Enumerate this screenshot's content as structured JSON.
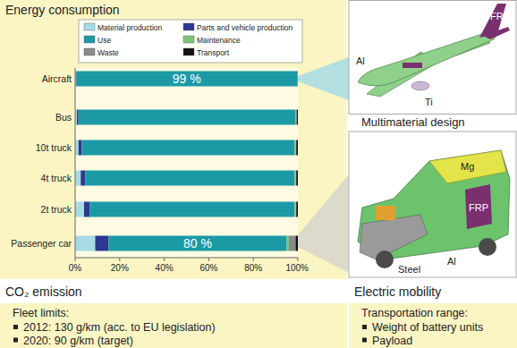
{
  "chart_data": {
    "type": "bar",
    "title": "Energy consumption",
    "orientation": "horizontal",
    "stacked": true,
    "legend": "top",
    "grid": false,
    "categories": [
      "Aircraft",
      "Bus",
      "10t truck",
      "4t truck",
      "2t truck",
      "Passenger car"
    ],
    "series": [
      {
        "name": "Material production",
        "color": "#a6dbe6",
        "values": [
          0.3,
          0.8,
          1.5,
          2.5,
          4,
          9
        ]
      },
      {
        "name": "Parts and vehicle production",
        "color": "#2b3990",
        "values": [
          0.3,
          0.7,
          1.5,
          2,
          2.5,
          6
        ]
      },
      {
        "name": "Use",
        "color": "#1b9aa5",
        "values": [
          99,
          97.5,
          95.5,
          94,
          92,
          80
        ],
        "data_labels": true,
        "value_labels": [
          "99 %",
          null,
          null,
          null,
          null,
          "80 %"
        ]
      },
      {
        "name": "Maintenance",
        "color": "#7dc47a",
        "values": [
          0.2,
          0.3,
          0.5,
          0.5,
          0.5,
          1
        ]
      },
      {
        "name": "Waste",
        "color": "#8a8a8a",
        "values": [
          0.1,
          0.2,
          0.3,
          0.3,
          0.3,
          3
        ]
      },
      {
        "name": "Transport",
        "color": "#111111",
        "values": [
          0.1,
          0.5,
          0.7,
          0.7,
          0.7,
          1
        ]
      }
    ],
    "xlim": [
      0,
      100
    ],
    "xticks": [
      {
        "value": 0,
        "label": "0%"
      },
      {
        "value": 20,
        "label": "20%"
      },
      {
        "value": 40,
        "label": "40%"
      },
      {
        "value": 60,
        "label": "60%"
      },
      {
        "value": 80,
        "label": "80%"
      },
      {
        "value": 100,
        "label": "100%"
      }
    ]
  },
  "panels": {
    "aircraft": {
      "labels": [
        "Al",
        "Ti",
        "FRP"
      ]
    },
    "multimaterial_design": {
      "title": "Multimaterial design",
      "labels": [
        "Mg",
        "FRP",
        "Steel",
        "Al"
      ]
    },
    "co2_emission": {
      "title": "CO₂ emission",
      "heading": "Fleet limits:",
      "items": [
        "2012: 130 g/km (acc. to EU legislation)",
        "2020: 90 g/km (target)"
      ]
    },
    "electric_mobility": {
      "title": "Electric mobility",
      "heading": "Transportation range:",
      "items": [
        "Weight of battery units",
        "Payload"
      ]
    }
  }
}
